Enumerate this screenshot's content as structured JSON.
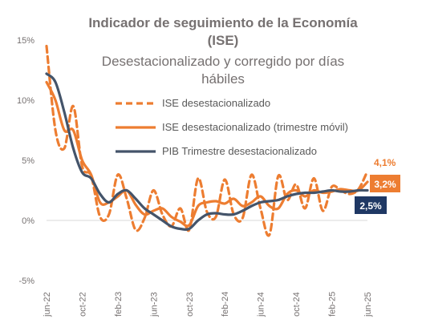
{
  "colors": {
    "ise": "#ED7D31",
    "ise_trim": "#ED7D31",
    "pib": "#44546A",
    "axis_text": "#767171",
    "box_ise_trim": "#ED7D31",
    "box_pib": "#1F3864"
  },
  "chart_data": {
    "type": "line",
    "title_lines": [
      "Indicador de seguimiento de la Economía",
      "(ISE)"
    ],
    "subtitle_lines": [
      "Desestacionalizado y corregido por días",
      "hábiles"
    ],
    "x": [
      "jun-22",
      "jul-22",
      "ago-22",
      "sep-22",
      "oct-22",
      "nov-22",
      "dic-22",
      "ene-23",
      "feb-23",
      "mar-23",
      "abr-23",
      "may-23",
      "jun-23",
      "jul-23",
      "ago-23",
      "sep-23",
      "oct-23",
      "nov-23",
      "dic-23",
      "ene-24",
      "feb-24",
      "mar-24",
      "abr-24",
      "may-24",
      "jun-24",
      "jul-24",
      "ago-24",
      "sep-24",
      "oct-24",
      "nov-24",
      "dic-24",
      "ene-25",
      "feb-25",
      "mar-25",
      "abr-25",
      "may-25",
      "jun-25"
    ],
    "x_tick_labels": [
      "jun-22",
      "oct-22",
      "feb-23",
      "jun-23",
      "oct-23",
      "feb-24",
      "jun-24",
      "oct-24",
      "feb-25",
      "jun-25"
    ],
    "y_tick_labels": [
      "15%",
      "10%",
      "5%",
      "0%",
      "-5%"
    ],
    "ylim": [
      -5,
      15
    ],
    "legend_position": "top-right",
    "series": [
      {
        "name": "ISE desestacionalizado",
        "style": "dashed",
        "values": [
          14.5,
          7.5,
          6,
          9.5,
          4.5,
          3.7,
          0.3,
          0.5,
          3.8,
          1.8,
          -0.8,
          0.2,
          2.5,
          0.5,
          -0.5,
          1,
          -0.8,
          3.5,
          0.7,
          0.3,
          3.4,
          0.5,
          0.2,
          3.8,
          1,
          -1.2,
          3.7,
          1.7,
          3,
          1,
          3.5,
          0.8,
          2.8,
          2.5,
          2.2,
          2.6,
          4.1
        ]
      },
      {
        "name": "ISE desestacionalizado (trimestre móvil)",
        "style": "solid",
        "values": [
          11.5,
          10,
          7.5,
          7.5,
          5,
          3.8,
          1.5,
          1.5,
          2,
          2.5,
          1.3,
          0.5,
          0.8,
          1,
          0.3,
          -0.1,
          -0.4,
          1.2,
          1.5,
          1.6,
          1.4,
          1.8,
          1.2,
          1.5,
          2,
          1.2,
          1,
          2.2,
          2.5,
          2,
          2.5,
          2.3,
          2.4,
          2.6,
          2.5,
          2.5,
          3.2
        ]
      },
      {
        "name": "PIB Trimestre desestacionalizado",
        "style": "solid",
        "values": [
          12.2,
          11.5,
          9,
          6,
          4,
          3.5,
          2.2,
          1.5,
          2.2,
          2.5,
          1.8,
          1,
          0.5,
          0,
          -0.5,
          -0.7,
          -0.7,
          0,
          0.5,
          0.6,
          0.5,
          0.5,
          0.8,
          1.2,
          1.5,
          1.6,
          1.7,
          2,
          2.2,
          2.3,
          2.3,
          2.4,
          2.5,
          2.4,
          2.4,
          2.5,
          2.5
        ]
      }
    ],
    "end_labels": [
      "4,1%",
      "3,2%",
      "2,5%"
    ]
  }
}
